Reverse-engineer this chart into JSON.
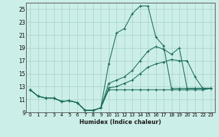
{
  "xlabel": "Humidex (Indice chaleur)",
  "bg_color": "#cceee8",
  "grid_color": "#aad4cc",
  "line_color": "#1a6b5a",
  "xlim": [
    -0.5,
    23.5
  ],
  "ylim": [
    9,
    26
  ],
  "yticks": [
    9,
    11,
    13,
    15,
    17,
    19,
    21,
    23,
    25
  ],
  "xticks": [
    0,
    1,
    2,
    3,
    4,
    5,
    6,
    7,
    8,
    9,
    10,
    11,
    12,
    13,
    14,
    15,
    16,
    17,
    18,
    19,
    20,
    21,
    22,
    23
  ],
  "series": [
    [
      12.5,
      11.5,
      11.2,
      11.2,
      10.7,
      10.8,
      10.5,
      9.3,
      9.3,
      9.7,
      16.5,
      21.3,
      22.0,
      24.3,
      25.5,
      25.5,
      20.7,
      19.3,
      12.7,
      12.7,
      12.7,
      12.7,
      12.7,
      12.7
    ],
    [
      12.5,
      11.5,
      11.2,
      11.2,
      10.7,
      10.8,
      10.5,
      9.3,
      9.3,
      9.7,
      13.5,
      14.0,
      14.5,
      15.5,
      17.0,
      18.5,
      19.2,
      18.8,
      18.0,
      19.0,
      12.7,
      12.7,
      12.7,
      12.7
    ],
    [
      12.5,
      11.5,
      11.2,
      11.2,
      10.7,
      10.8,
      10.5,
      9.3,
      9.3,
      9.7,
      12.8,
      13.0,
      13.5,
      14.0,
      15.0,
      16.0,
      16.5,
      16.8,
      17.2,
      17.0,
      17.0,
      14.5,
      12.7,
      12.7
    ],
    [
      12.5,
      11.5,
      11.2,
      11.2,
      10.7,
      10.8,
      10.5,
      9.3,
      9.3,
      9.7,
      12.5,
      12.5,
      12.5,
      12.5,
      12.5,
      12.5,
      12.5,
      12.5,
      12.5,
      12.5,
      12.5,
      12.5,
      12.5,
      12.7
    ]
  ]
}
